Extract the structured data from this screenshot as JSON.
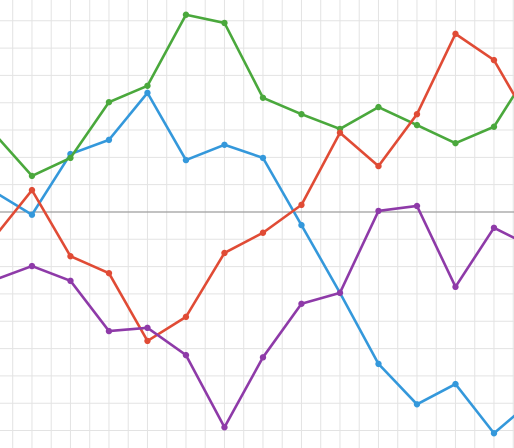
{
  "chart_data": {
    "type": "line",
    "x": [
      0,
      1,
      2,
      3,
      4,
      5,
      6,
      7,
      8,
      9,
      10,
      11,
      12,
      13,
      14
    ],
    "xlim": [
      0.17,
      13.52
    ],
    "xticks": [
      0.5,
      1,
      1.5,
      2,
      2.5,
      3,
      3.5,
      4,
      4.5,
      5,
      5.5,
      6,
      6.5,
      7,
      7.5,
      8,
      8.5,
      9,
      9.5,
      10,
      10.5,
      11,
      11.5,
      12,
      12.5,
      13,
      13.5
    ],
    "ylim": [
      -4.32,
      3.88
    ],
    "yticks": [
      -4,
      -3.5,
      -3,
      -2.5,
      -2,
      -1.5,
      -1,
      -0.5,
      0,
      0.5,
      1,
      1.5,
      2,
      2.5,
      3,
      3.5
    ],
    "grid": true,
    "zero_line": true,
    "series": [
      {
        "color": "#3498db",
        "values": [
          0.38,
          -0.05,
          1.06,
          1.32,
          2.18,
          0.95,
          1.23,
          0.99,
          -0.24,
          -1.48,
          -2.78,
          -3.52,
          -3.15,
          -4.05,
          -3.45
        ]
      },
      {
        "color": "#4aa83c",
        "values": [
          1.45,
          0.66,
          0.99,
          2.01,
          2.31,
          3.61,
          3.46,
          2.09,
          1.79,
          1.52,
          1.92,
          1.59,
          1.26,
          1.56,
          2.67
        ]
      },
      {
        "color": "#e04b35",
        "values": [
          -0.48,
          0.4,
          -0.81,
          -1.12,
          -2.36,
          -1.92,
          -0.75,
          -0.38,
          0.13,
          1.45,
          0.84,
          1.79,
          3.26,
          2.78,
          1.56
        ]
      },
      {
        "color": "#8e3aa8",
        "values": [
          -1.25,
          -0.99,
          -1.26,
          -2.18,
          -2.12,
          -2.62,
          -3.94,
          -2.66,
          -1.68,
          -1.48,
          0.02,
          0.11,
          -1.37,
          -0.29,
          -0.64
        ]
      }
    ]
  }
}
